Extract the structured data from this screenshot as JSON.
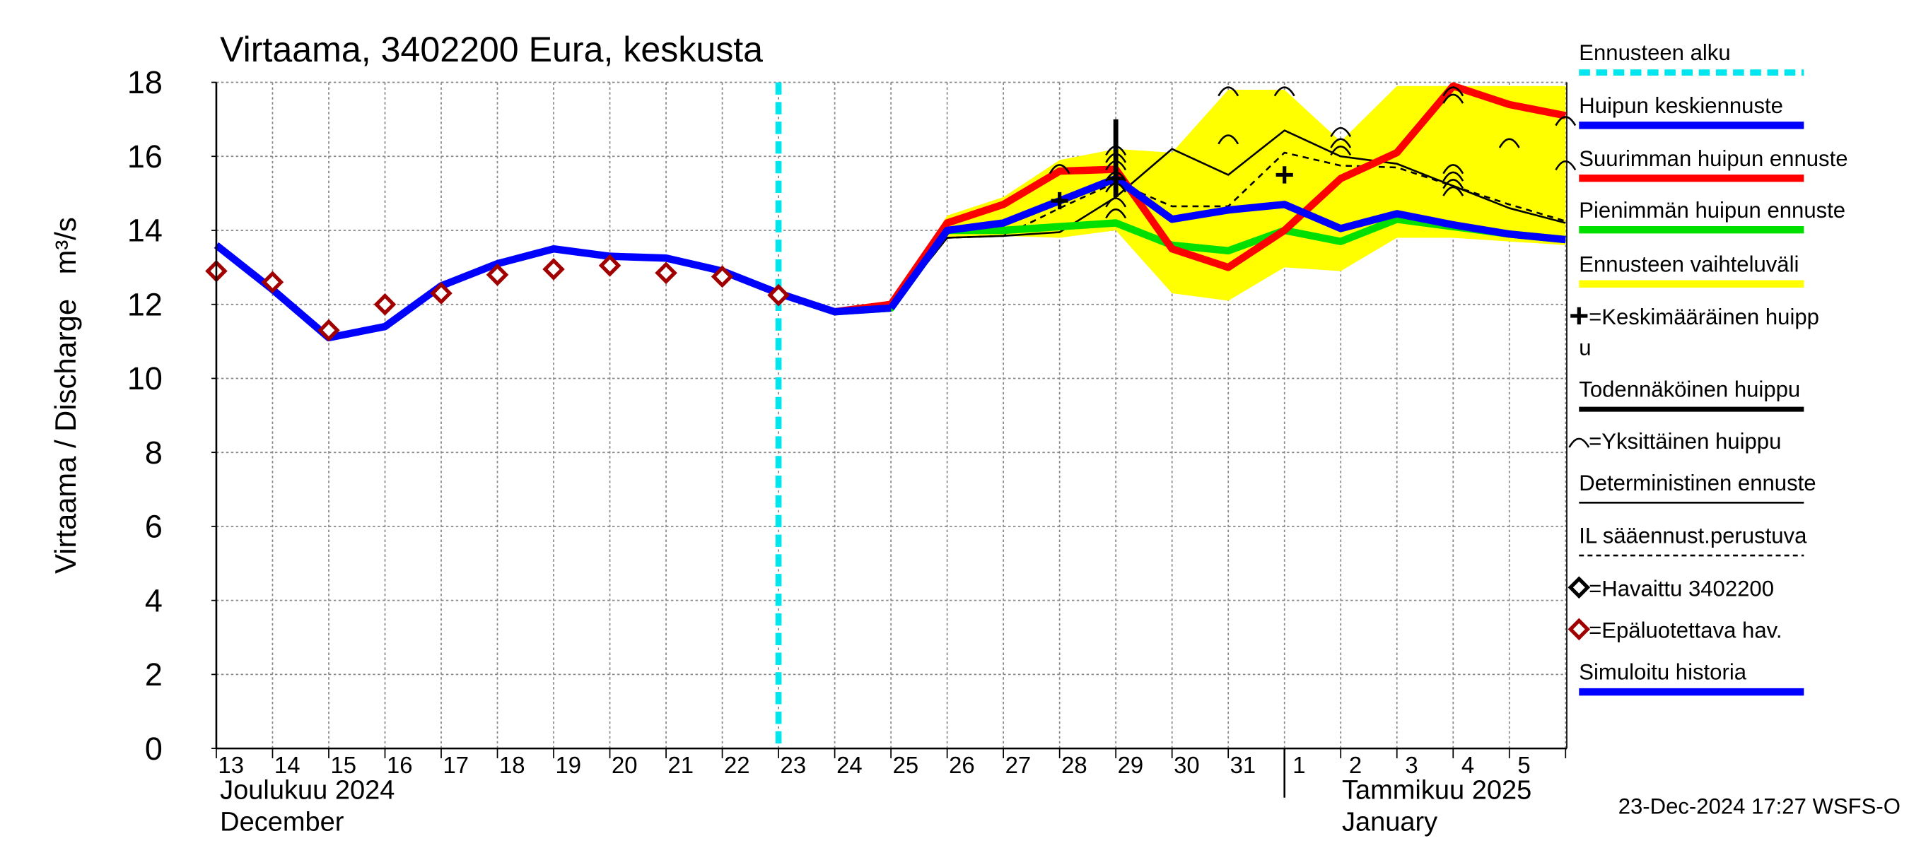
{
  "chart_data": {
    "type": "line",
    "title": "Virtaama, 3402200 Eura, keskusta",
    "y_label": "Virtaama / Discharge",
    "y_unit": "m³/s",
    "month_labels": [
      "Joulukuu  2024",
      "December",
      "Tammikuu  2025",
      "January"
    ],
    "timestamp": "23-Dec-2024 17:27 WSFS-O",
    "categories": [
      "13",
      "14",
      "15",
      "16",
      "17",
      "18",
      "19",
      "20",
      "21",
      "22",
      "23",
      "24",
      "25",
      "26",
      "27",
      "28",
      "29",
      "30",
      "31",
      "1",
      "2",
      "3",
      "4",
      "5",
      null
    ],
    "ylim": [
      0,
      18
    ],
    "yticks": [
      0,
      2,
      4,
      6,
      8,
      10,
      12,
      14,
      16,
      18
    ],
    "grid": true,
    "forecast_start": 10,
    "band": {
      "color": "#ffff00",
      "upper": [
        null,
        null,
        null,
        null,
        null,
        null,
        null,
        null,
        null,
        null,
        null,
        11.8,
        12.0,
        14.4,
        14.9,
        15.9,
        16.2,
        16.1,
        17.8,
        17.8,
        16.4,
        17.9,
        17.9,
        17.9,
        17.9
      ],
      "lower": [
        null,
        null,
        null,
        null,
        null,
        null,
        null,
        null,
        null,
        null,
        null,
        11.8,
        11.9,
        13.8,
        13.85,
        13.8,
        14.0,
        12.3,
        12.1,
        13.0,
        12.9,
        13.8,
        13.8,
        13.7,
        13.6
      ]
    },
    "series": [
      {
        "color": "#000000",
        "width": 1.5,
        "dash": false,
        "values": [
          null,
          null,
          null,
          null,
          null,
          null,
          null,
          null,
          null,
          null,
          null,
          null,
          11.9,
          13.8,
          13.85,
          13.95,
          14.9,
          16.2,
          15.5,
          16.7,
          16.0,
          15.8,
          15.2,
          14.6,
          14.2
        ]
      },
      {
        "color": "#000000",
        "width": 1.5,
        "dash": true,
        "values": [
          null,
          null,
          null,
          null,
          null,
          null,
          null,
          null,
          null,
          null,
          null,
          null,
          11.9,
          13.8,
          13.85,
          14.6,
          15.3,
          14.65,
          14.65,
          16.1,
          15.75,
          15.7,
          15.2,
          14.7,
          14.25
        ]
      },
      {
        "color": "#00e000",
        "width": 6,
        "dash": false,
        "values": [
          null,
          null,
          null,
          null,
          null,
          null,
          null,
          null,
          null,
          null,
          null,
          11.8,
          11.9,
          14.0,
          14.0,
          14.1,
          14.2,
          13.6,
          13.45,
          14.0,
          13.7,
          14.3,
          14.1,
          13.9,
          13.75
        ]
      },
      {
        "color": "#ff0000",
        "width": 6,
        "dash": false,
        "values": [
          null,
          null,
          null,
          null,
          null,
          null,
          null,
          null,
          null,
          null,
          null,
          11.8,
          12.0,
          14.2,
          14.7,
          15.6,
          15.65,
          13.5,
          13.0,
          14.0,
          15.4,
          16.1,
          17.9,
          17.4,
          17.1
        ]
      },
      {
        "color": "#0000ff",
        "width": 6,
        "dash": false,
        "values": [
          null,
          null,
          null,
          null,
          null,
          null,
          null,
          null,
          null,
          null,
          null,
          null,
          11.9,
          14.0,
          14.2,
          14.8,
          15.4,
          14.3,
          14.55,
          14.7,
          14.05,
          14.45,
          14.15,
          13.9,
          13.75
        ]
      },
      {
        "color": "#0000ff",
        "width": 6,
        "dash": false,
        "values": [
          13.6,
          12.4,
          11.1,
          11.4,
          12.5,
          13.1,
          13.5,
          13.3,
          13.25,
          12.9,
          12.3,
          11.8,
          11.9,
          null,
          null,
          null,
          null,
          null,
          null,
          null,
          null,
          null,
          null,
          null,
          null
        ]
      }
    ],
    "observed_unreliable": {
      "color": "#a00000",
      "values": [
        12.9,
        12.6,
        11.3,
        12.0,
        12.3,
        12.8,
        12.95,
        13.05,
        12.85,
        12.75,
        12.25,
        null,
        null,
        null,
        null,
        null,
        null,
        null,
        null,
        null,
        null,
        null,
        null,
        null,
        null
      ]
    },
    "individual_peaks": {
      "x": [
        15,
        16,
        16,
        16,
        16,
        16,
        16,
        16,
        18,
        18,
        19,
        20,
        20,
        20,
        22,
        22,
        22,
        22,
        22,
        22,
        23,
        24,
        24
      ],
      "y": [
        15.7,
        16.2,
        15.8,
        15.5,
        15.2,
        14.8,
        14.5,
        16.0,
        17.8,
        16.5,
        17.8,
        16.4,
        16.2,
        16.7,
        17.8,
        17.6,
        15.7,
        15.5,
        15.3,
        15.1,
        16.4,
        15.8,
        17.0
      ]
    },
    "mean_peaks": {
      "x": [
        15,
        16,
        19
      ],
      "y": [
        14.8,
        15.4,
        15.5
      ]
    },
    "probable_peak": {
      "x": 16,
      "low": 14.9,
      "high": 17.0
    },
    "legend": [
      {
        "label": "Ennusteen alku",
        "color": "#00e5ee",
        "style": "dash"
      },
      {
        "label": "Huipun keskiennuste",
        "color": "#0000ff",
        "style": "thick"
      },
      {
        "label": "Suurimman huipun ennuste",
        "color": "#ff0000",
        "style": "thick"
      },
      {
        "label": "Pienimmän huipun ennuste",
        "color": "#00e000",
        "style": "thick"
      },
      {
        "label": "Ennusteen vaihteluväli",
        "color": "#ffff00",
        "style": "thick"
      },
      {
        "label": "=Keskimääräinen huipp",
        "label2": "u",
        "color": "#000000",
        "style": "plus"
      },
      {
        "label": "Todennäköinen huippu",
        "color": "#000000",
        "style": "medium"
      },
      {
        "label": "=Yksittäinen huippu",
        "color": "#000000",
        "style": "arc"
      },
      {
        "label": "Deterministinen ennuste",
        "color": "#000000",
        "style": "thin"
      },
      {
        "label": "IL sääennust.perustuva",
        "color": "#000000",
        "style": "thindash"
      },
      {
        "label": "=Havaittu 3402200",
        "color": "#000000",
        "style": "diamond"
      },
      {
        "label": "=Epäluotettava hav.",
        "color": "#a00000",
        "style": "diamond"
      },
      {
        "label": "Simuloitu historia",
        "color": "#0000ff",
        "style": "thick"
      }
    ]
  }
}
